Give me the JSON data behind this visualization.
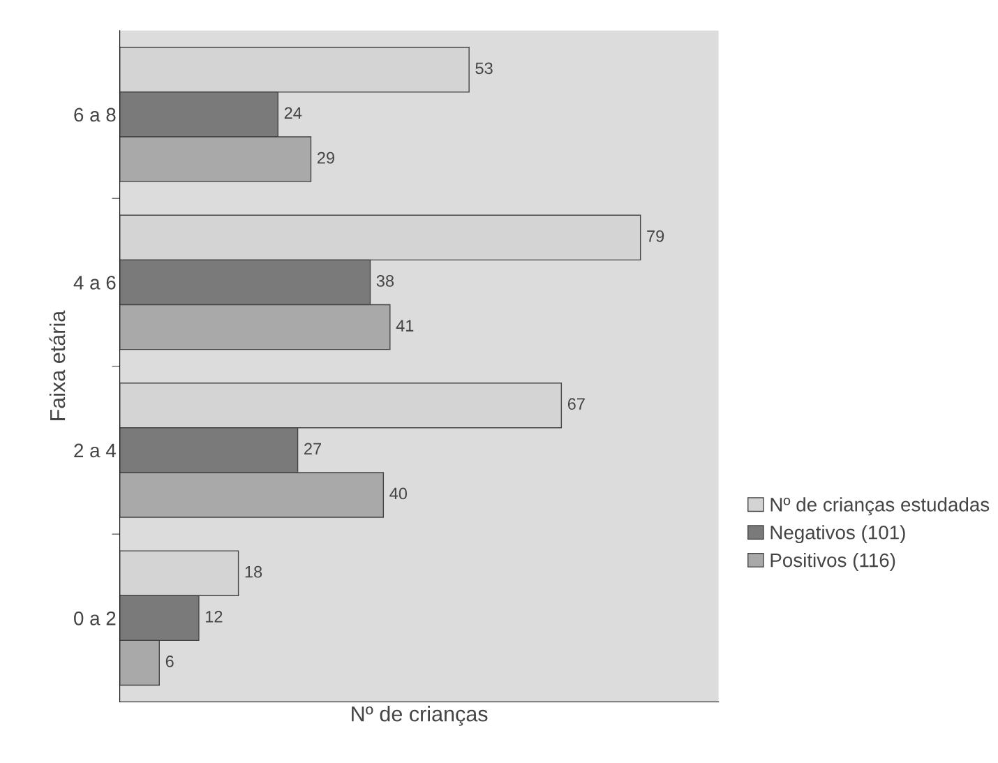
{
  "chart_data": {
    "type": "bar",
    "orientation": "horizontal",
    "xlabel": "Nº de crianças",
    "ylabel": "Faixa etária",
    "categories": [
      "6 a 8",
      "4 a 6",
      "2 a 4",
      "0 a 2"
    ],
    "series": [
      {
        "name": "Nº de crianças estudadas",
        "color": "#d4d4d4",
        "values": [
          53,
          79,
          67,
          18
        ]
      },
      {
        "name": "Negativos (101)",
        "color": "#7a7a7a",
        "values": [
          24,
          38,
          27,
          12
        ]
      },
      {
        "name": "Positivos (116)",
        "color": "#a9a9a9",
        "values": [
          29,
          41,
          40,
          6
        ]
      }
    ],
    "data_labels": true,
    "legend": "right",
    "grid": false,
    "tick_labels": "y"
  }
}
